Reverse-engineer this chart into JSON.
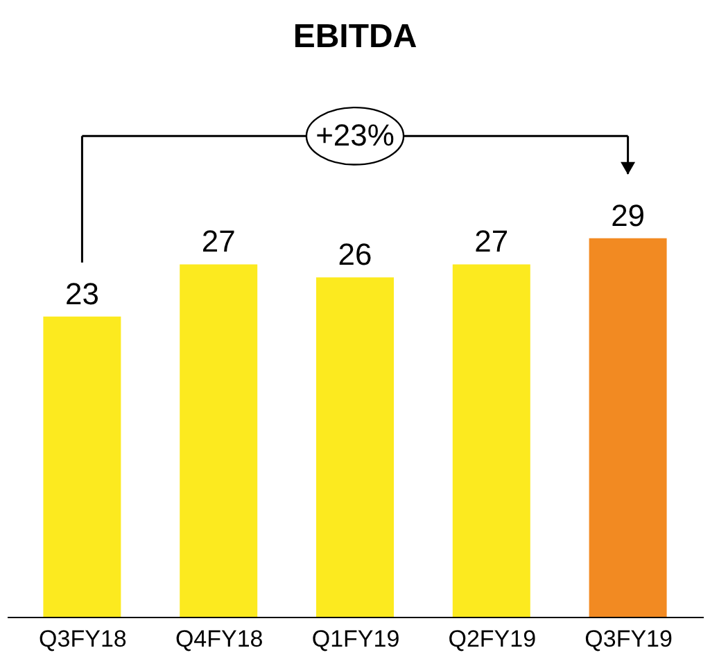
{
  "chart_data": {
    "type": "bar",
    "title": "EBITDA",
    "categories": [
      "Q3FY18",
      "Q4FY18",
      "Q1FY19",
      "Q2FY19",
      "Q3FY19"
    ],
    "values": [
      23,
      27,
      26,
      27,
      29
    ],
    "colors": [
      "#fcea1f",
      "#fcea1f",
      "#fcea1f",
      "#fcea1f",
      "#f28a22"
    ],
    "data_labels": true,
    "grid": false,
    "annotations": [
      "+23%"
    ]
  }
}
